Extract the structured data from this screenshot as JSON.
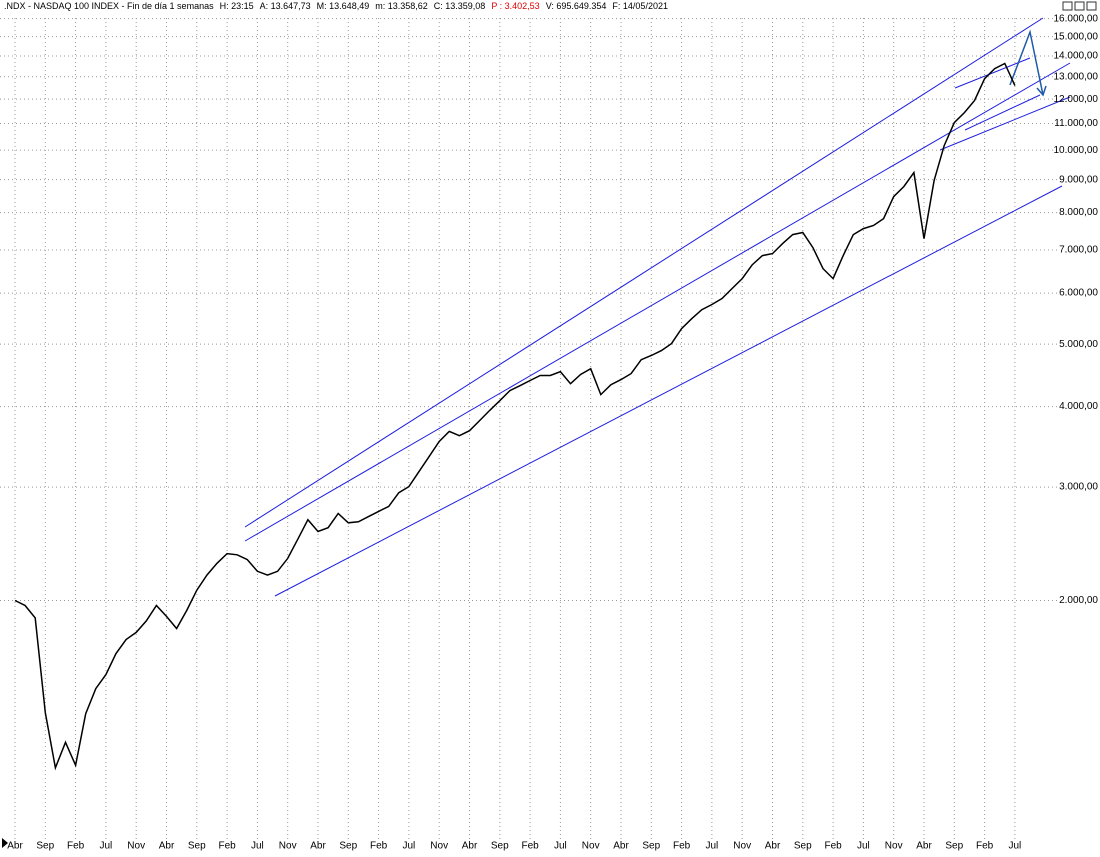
{
  "chart_data": {
    "type": "line",
    "log_scale": true,
    "grid": true,
    "title": ".NDX - NASDAQ 100 INDEX - Fin de día 1 semanas",
    "info": [
      {
        "text": "H: 23:15",
        "color": "#000000"
      },
      {
        "text": "A: 13.647,73",
        "color": "#000000"
      },
      {
        "text": "M: 13.648,49",
        "color": "#000000"
      },
      {
        "text": "m: 13.358,62",
        "color": "#000000"
      },
      {
        "text": "C: 13.359,08",
        "color": "#000000"
      },
      {
        "text": "P : 3.402,53",
        "color": "#e00000"
      },
      {
        "text": "V: 695.649.354",
        "color": "#000000"
      },
      {
        "text": "F: 14/05/2021",
        "color": "#000000"
      }
    ],
    "categories": [
      "Abr",
      null,
      null,
      "Sep",
      null,
      null,
      "Feb",
      null,
      null,
      "Jul",
      null,
      null,
      "Nov",
      null,
      null,
      "Abr",
      null,
      null,
      "Sep",
      null,
      null,
      "Feb",
      null,
      null,
      "Jul",
      null,
      null,
      "Nov",
      null,
      null,
      "Abr",
      null,
      null,
      "Sep",
      null,
      null,
      "Feb",
      null,
      null,
      "Jul",
      null,
      null,
      "Nov",
      null,
      null,
      "Abr",
      null,
      null,
      "Sep",
      null,
      null,
      "Feb",
      null,
      null,
      "Jul",
      null,
      null,
      "Nov",
      null,
      null,
      "Abr",
      null,
      null,
      "Sep",
      null,
      null,
      "Feb",
      null,
      null,
      "Jul",
      null,
      null,
      "Nov",
      null,
      null,
      "Abr",
      null,
      null,
      "Sep",
      null,
      null,
      "Feb",
      null,
      null,
      "Jul",
      null,
      null,
      "Nov",
      null,
      null,
      "Abr",
      null,
      null,
      "Sep",
      null,
      null,
      "Feb",
      null,
      null,
      "Jul"
    ],
    "series": [
      {
        "name": ".NDX",
        "color": "#000000",
        "values": [
          2000,
          1965,
          1880,
          1340,
          1100,
          1205,
          1110,
          1335,
          1460,
          1535,
          1655,
          1740,
          1785,
          1860,
          1965,
          1890,
          1810,
          1930,
          2075,
          2190,
          2285,
          2365,
          2355,
          2315,
          2220,
          2190,
          2220,
          2325,
          2490,
          2670,
          2560,
          2595,
          2730,
          2640,
          2650,
          2700,
          2750,
          2800,
          2940,
          3005,
          3170,
          3345,
          3530,
          3660,
          3605,
          3670,
          3805,
          3945,
          4085,
          4235,
          4310,
          4390,
          4470,
          4470,
          4530,
          4340,
          4485,
          4580,
          4175,
          4325,
          4405,
          4500,
          4730,
          4800,
          4885,
          5010,
          5285,
          5475,
          5655,
          5760,
          5885,
          6100,
          6320,
          6640,
          6860,
          6910,
          7160,
          7395,
          7450,
          7060,
          6550,
          6320,
          6860,
          7395,
          7555,
          7640,
          7830,
          8470,
          8780,
          9230,
          7290,
          8970,
          10165,
          11035,
          11435,
          11935,
          12910,
          13385,
          13630,
          12595
        ]
      }
    ],
    "ylim": [
      850,
      16500
    ],
    "yticks": [
      {
        "value": 16000,
        "label": "16.000,00"
      },
      {
        "value": 15000,
        "label": "15.000,00"
      },
      {
        "value": 14000,
        "label": "14.000,00"
      },
      {
        "value": 13000,
        "label": "13.000,00"
      },
      {
        "value": 12000,
        "label": "12.000,00"
      },
      {
        "value": 11000,
        "label": "11.000,00"
      },
      {
        "value": 10000,
        "label": "10.000,00"
      },
      {
        "value": 9000,
        "label": "9.000,00"
      },
      {
        "value": 8000,
        "label": "8.000,00"
      },
      {
        "value": 7000,
        "label": "7.000,00"
      },
      {
        "value": 6000,
        "label": "6.000,00"
      },
      {
        "value": 5000,
        "label": "5.000,00"
      },
      {
        "value": 4000,
        "label": "4.000,00"
      },
      {
        "value": 3000,
        "label": "3.000,00"
      },
      {
        "value": 2000,
        "label": "2.000,00"
      }
    ]
  }
}
